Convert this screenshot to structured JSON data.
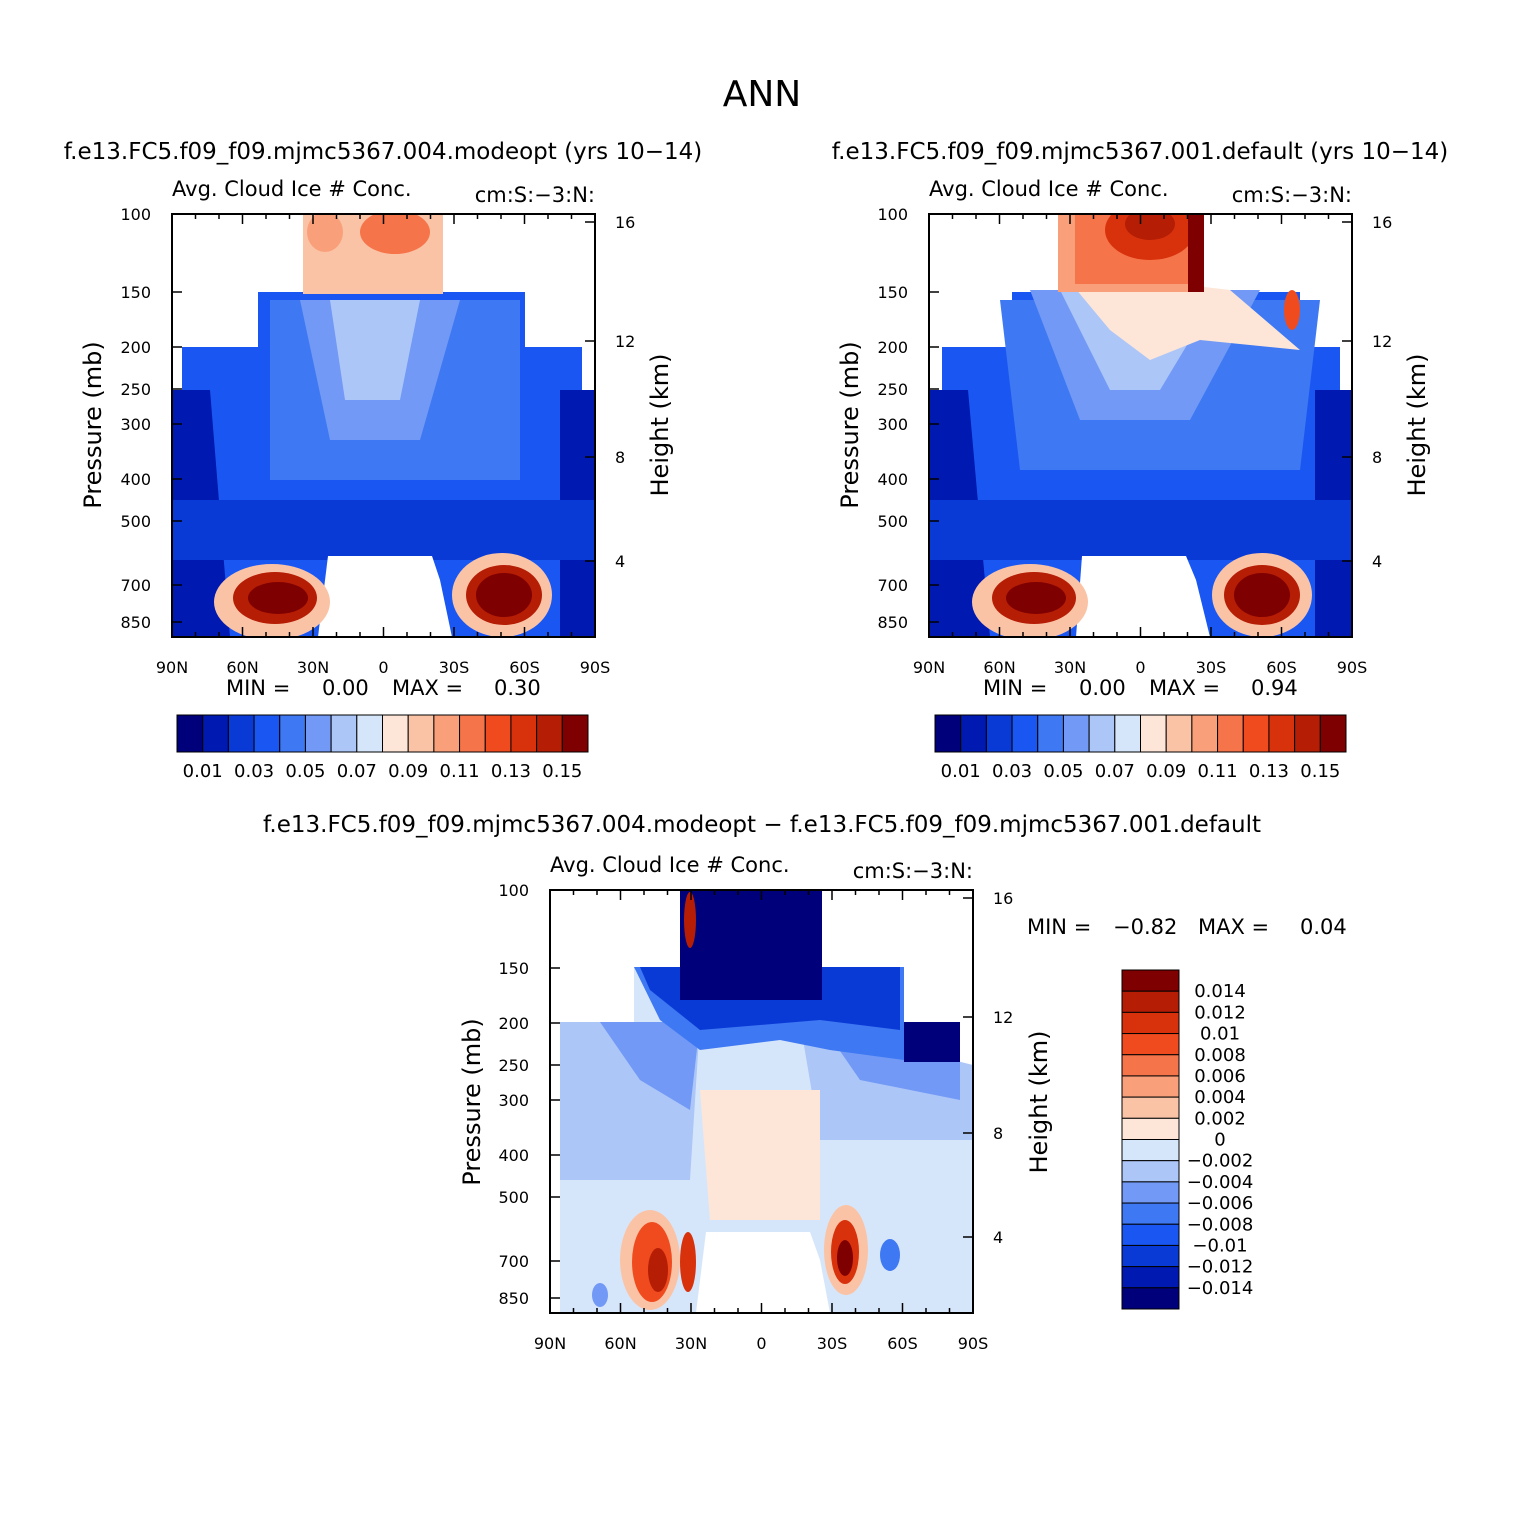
{
  "page": {
    "title": "ANN"
  },
  "colors": {
    "blue_red_16": [
      "#00007a",
      "#0019b0",
      "#0a3ad6",
      "#1a57f2",
      "#3e78f2",
      "#7199f5",
      "#adc6f8",
      "#d6e6fa",
      "#fde6d8",
      "#fbc3a6",
      "#f9a07a",
      "#f5744a",
      "#f04b1f",
      "#d8320d",
      "#b51d05",
      "#7f0000"
    ],
    "diff_16": [
      "#00007a",
      "#0019b0",
      "#0a3ad6",
      "#1a57f2",
      "#3e78f2",
      "#7199f5",
      "#adc6f8",
      "#d6e6fa",
      "#fde6d8",
      "#fbc3a6",
      "#f9a07a",
      "#f5744a",
      "#f04b1f",
      "#d8320d",
      "#b51d05",
      "#7f0000"
    ]
  },
  "chart_data": [
    {
      "type": "heatmap",
      "name": "panel-modeopt",
      "title": "f.e13.FC5.f09_f09.mjmc5367.004.modeopt (yrs 10−14)",
      "subtitle_left": "Avg. Cloud Ice # Conc.",
      "subtitle_right": "cm:S:−3:N:",
      "ylabel": "Pressure (mb)",
      "ylabel_right": "Height (km)",
      "x_ticks": [
        "90N",
        "60N",
        "30N",
        "0",
        "30S",
        "60S",
        "90S"
      ],
      "y_ticks": [
        "100",
        "150",
        "200",
        "250",
        "300",
        "400",
        "500",
        "700",
        "850"
      ],
      "y_ticks_right": [
        "16",
        "12",
        "8",
        "4"
      ],
      "stats": {
        "min_label": "MIN =",
        "min": "0.00",
        "max_label": "MAX =",
        "max": "0.30"
      },
      "colorbar_labels": [
        "0.01",
        "0.03",
        "0.05",
        "0.07",
        "0.09",
        "0.11",
        "0.13",
        "0.15"
      ],
      "colorbar_orientation": "horizontal"
    },
    {
      "type": "heatmap",
      "name": "panel-default",
      "title": "f.e13.FC5.f09_f09.mjmc5367.001.default (yrs 10−14)",
      "subtitle_left": "Avg. Cloud Ice # Conc.",
      "subtitle_right": "cm:S:−3:N:",
      "ylabel": "Pressure (mb)",
      "ylabel_right": "Height (km)",
      "x_ticks": [
        "90N",
        "60N",
        "30N",
        "0",
        "30S",
        "60S",
        "90S"
      ],
      "y_ticks": [
        "100",
        "150",
        "200",
        "250",
        "300",
        "400",
        "500",
        "700",
        "850"
      ],
      "y_ticks_right": [
        "16",
        "12",
        "8",
        "4"
      ],
      "stats": {
        "min_label": "MIN =",
        "min": "0.00",
        "max_label": "MAX =",
        "max": "0.94"
      },
      "colorbar_labels": [
        "0.01",
        "0.03",
        "0.05",
        "0.07",
        "0.09",
        "0.11",
        "0.13",
        "0.15"
      ],
      "colorbar_orientation": "horizontal"
    },
    {
      "type": "heatmap",
      "name": "panel-difference",
      "title": "f.e13.FC5.f09_f09.mjmc5367.004.modeopt − f.e13.FC5.f09_f09.mjmc5367.001.default",
      "subtitle_left": "Avg. Cloud Ice # Conc.",
      "subtitle_right": "cm:S:−3:N:",
      "ylabel": "Pressure (mb)",
      "ylabel_right": "Height (km)",
      "x_ticks": [
        "90N",
        "60N",
        "30N",
        "0",
        "30S",
        "60S",
        "90S"
      ],
      "y_ticks": [
        "100",
        "150",
        "200",
        "250",
        "300",
        "400",
        "500",
        "700",
        "850"
      ],
      "y_ticks_right": [
        "16",
        "12",
        "8",
        "4"
      ],
      "stats": {
        "min_label": "MIN =",
        "min": "−0.82",
        "max_label": "MAX =",
        "max": "0.04"
      },
      "colorbar_labels": [
        "0.014",
        "0.012",
        "0.01",
        "0.008",
        "0.006",
        "0.004",
        "0.002",
        "0",
        "−0.002",
        "−0.004",
        "−0.006",
        "−0.008",
        "−0.01",
        "−0.012",
        "−0.014"
      ],
      "colorbar_orientation": "vertical"
    }
  ]
}
